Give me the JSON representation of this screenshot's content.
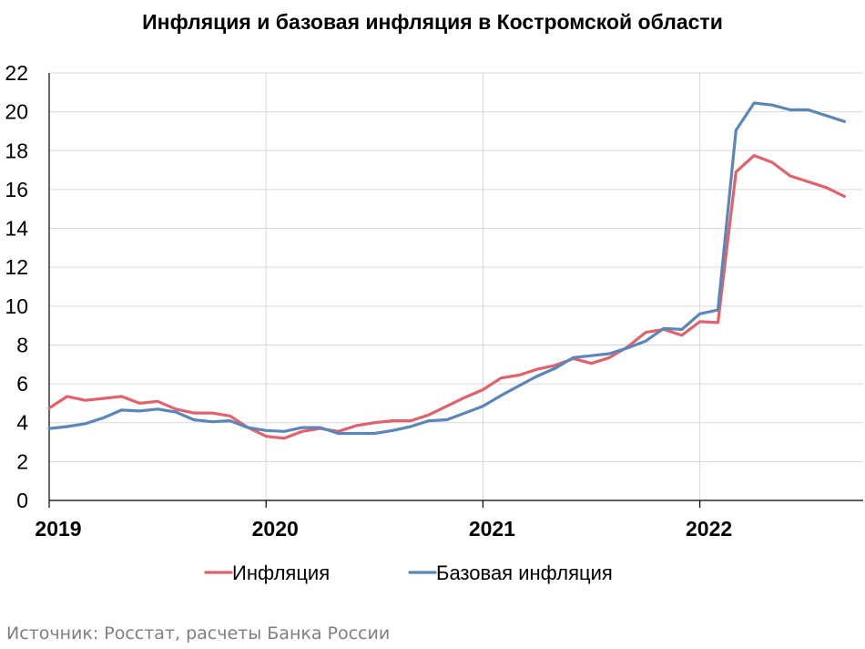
{
  "page": {
    "title": "Инфляция и базовая инфляция в Костромской области",
    "source": "Источник: Росстат, расчеты Банка России"
  },
  "colors": {
    "inflation": "#e0636b",
    "core": "#5b86b8",
    "grid": "#d9d9d9",
    "axis": "#000000"
  },
  "chart_data": {
    "type": "line",
    "title": "Инфляция и базовая инфляция в Костромской области",
    "xlabel": "",
    "ylabel": "",
    "ylim": [
      0,
      22
    ],
    "yticks": [
      "0",
      "2",
      "4",
      "6",
      "8",
      "10",
      "12",
      "14",
      "16",
      "18",
      "20",
      "22"
    ],
    "x_tick_labels": [
      "2019",
      "2020",
      "2021",
      "2022"
    ],
    "x_start": "2019-01",
    "x_end": "2022-09",
    "legend_position": "bottom",
    "grid": true,
    "series": [
      {
        "name": "Инфляция",
        "color": "#e0636b",
        "values": [
          4.75,
          5.35,
          5.15,
          5.25,
          5.35,
          5.0,
          5.1,
          4.7,
          4.5,
          4.5,
          4.35,
          3.75,
          3.3,
          3.2,
          3.55,
          3.7,
          3.55,
          3.85,
          4.0,
          4.1,
          4.1,
          4.4,
          4.85,
          5.3,
          5.7,
          6.3,
          6.45,
          6.75,
          6.95,
          7.3,
          7.05,
          7.35,
          7.9,
          8.65,
          8.8,
          8.5,
          9.2,
          9.15,
          16.9,
          17.75,
          17.4,
          16.7,
          16.4,
          16.1,
          15.65
        ]
      },
      {
        "name": "Базовая инфляция",
        "color": "#5b86b8",
        "values": [
          3.7,
          3.8,
          3.95,
          4.25,
          4.65,
          4.6,
          4.7,
          4.55,
          4.15,
          4.05,
          4.1,
          3.75,
          3.6,
          3.55,
          3.75,
          3.75,
          3.45,
          3.45,
          3.45,
          3.6,
          3.8,
          4.1,
          4.15,
          4.5,
          4.85,
          5.4,
          5.9,
          6.4,
          6.8,
          7.35,
          7.45,
          7.55,
          7.85,
          8.2,
          8.85,
          8.8,
          9.6,
          9.8,
          19.05,
          20.45,
          20.35,
          20.1,
          20.1,
          19.8,
          19.5
        ]
      }
    ]
  }
}
